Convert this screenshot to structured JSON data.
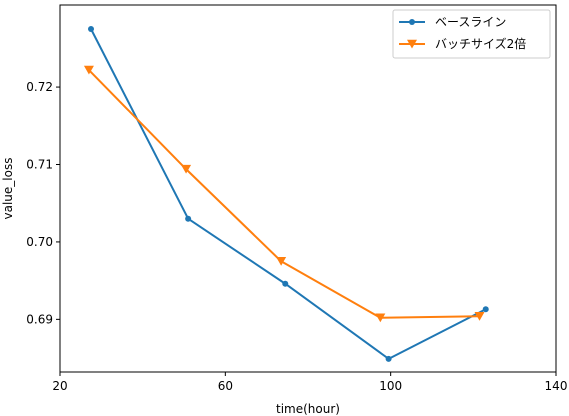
{
  "chart_data": {
    "type": "line",
    "xlabel": "time(hour)",
    "ylabel": "value_loss",
    "xlim": [
      20,
      140
    ],
    "ylim": [
      0.6832,
      0.7306
    ],
    "xticks": [
      20,
      60,
      100,
      140
    ],
    "yticks": [
      0.69,
      0.7,
      0.71,
      0.72
    ],
    "grid": false,
    "legend": "top-right",
    "series": [
      {
        "name": "ベースライン",
        "color": "#1f77b4",
        "marker": "circle",
        "x": [
          27.5,
          51.0,
          74.5,
          99.5,
          123.0
        ],
        "y": [
          0.7275,
          0.703,
          0.6946,
          0.6849,
          0.6913
        ]
      },
      {
        "name": "バッチサイズ2倍",
        "color": "#ff7f0e",
        "marker": "triangle-down",
        "x": [
          27.0,
          50.5,
          73.5,
          97.5,
          121.5
        ],
        "y": [
          0.7222,
          0.7094,
          0.6975,
          0.6902,
          0.6904
        ]
      }
    ]
  }
}
